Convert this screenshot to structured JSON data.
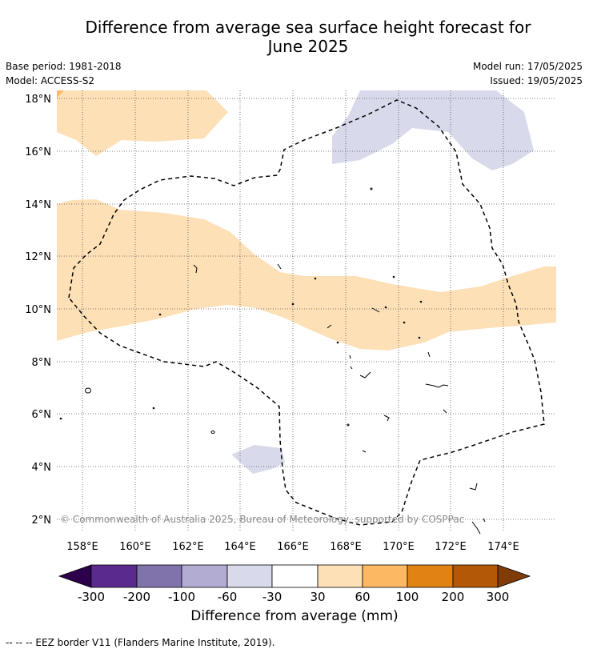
{
  "title_line1": "Difference from average sea surface height forecast for",
  "title_line2": "June 2025",
  "meta": {
    "base_period": "Base period: 1981-2018",
    "model": "Model: ACCESS-S2",
    "model_run": "Model run: 17/05/2025",
    "issued": "Issued: 19/05/2025"
  },
  "map": {
    "lat_labels": [
      "18°N",
      "16°N",
      "14°N",
      "12°N",
      "10°N",
      "8°N",
      "6°N",
      "4°N",
      "2°N"
    ],
    "lon_labels": [
      "158°E",
      "160°E",
      "162°E",
      "164°E",
      "166°E",
      "168°E",
      "170°E",
      "172°E",
      "174°E"
    ],
    "copyright": "© Commonwealth of Australia 2025, Bureau of Meteorology, supported by COSPPac"
  },
  "colorbar": {
    "colors": [
      "#2d004b",
      "#5b2a8f",
      "#8073ac",
      "#b2abd2",
      "#d8daeb",
      "#ffffff",
      "#fee0b6",
      "#fdb863",
      "#e08214",
      "#b35806",
      "#7f3b08"
    ],
    "tick_labels": [
      "-300",
      "-200",
      "-100",
      "-60",
      "-30",
      "30",
      "60",
      "100",
      "200",
      "300"
    ],
    "title": "Difference from average (mm)"
  },
  "footnote": "--  --  -- EEZ border V11 (Flanders Marine Institute, 2019)."
}
